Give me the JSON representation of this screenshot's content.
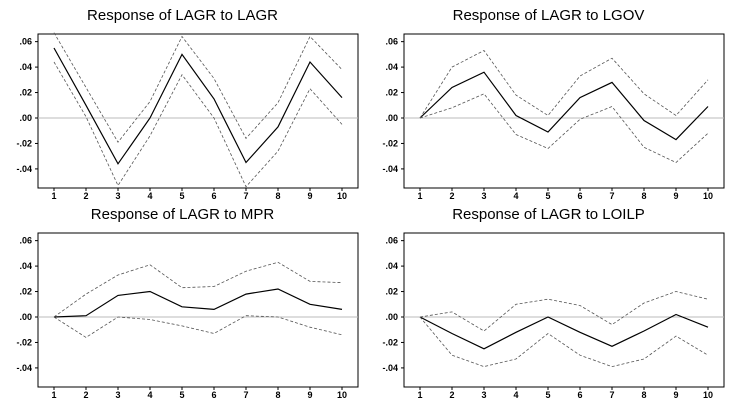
{
  "chart_data": [
    {
      "type": "line",
      "title": "Response of LAGR to LAGR",
      "x": [
        1,
        2,
        3,
        4,
        5,
        6,
        7,
        8,
        9,
        10
      ],
      "ylim": [
        -0.055,
        0.066
      ],
      "yticks": [
        0.06,
        0.04,
        0.02,
        0.0,
        -0.02,
        -0.04
      ],
      "ytick_labels": [
        ".06",
        ".04",
        ".02",
        ".00",
        "-.02",
        "-.04"
      ],
      "zero_line": true,
      "series": [
        {
          "style": "solid",
          "values": [
            0.055,
            0.01,
            -0.036,
            0.0,
            0.05,
            0.015,
            -0.035,
            -0.007,
            0.044,
            0.016
          ]
        },
        {
          "style": "dashed",
          "values": [
            0.067,
            0.024,
            -0.019,
            0.013,
            0.064,
            0.031,
            -0.016,
            0.012,
            0.064,
            0.038
          ]
        },
        {
          "style": "dashed",
          "values": [
            0.044,
            0.001,
            -0.053,
            -0.014,
            0.034,
            0.0,
            -0.054,
            -0.026,
            0.023,
            -0.005
          ]
        }
      ]
    },
    {
      "type": "line",
      "title": "Response of LAGR to LGOV",
      "x": [
        1,
        2,
        3,
        4,
        5,
        6,
        7,
        8,
        9,
        10
      ],
      "ylim": [
        -0.055,
        0.066
      ],
      "yticks": [
        0.06,
        0.04,
        0.02,
        0.0,
        -0.02,
        -0.04
      ],
      "ytick_labels": [
        ".06",
        ".04",
        ".02",
        ".00",
        "-.02",
        "-.04"
      ],
      "zero_line": true,
      "series": [
        {
          "style": "solid",
          "values": [
            0.0,
            0.024,
            0.036,
            0.002,
            -0.011,
            0.016,
            0.028,
            -0.002,
            -0.017,
            0.009
          ]
        },
        {
          "style": "dashed",
          "values": [
            0.0,
            0.04,
            0.053,
            0.018,
            0.002,
            0.033,
            0.047,
            0.019,
            0.002,
            0.03
          ]
        },
        {
          "style": "dashed",
          "values": [
            0.0,
            0.008,
            0.019,
            -0.013,
            -0.024,
            -0.001,
            0.009,
            -0.023,
            -0.035,
            -0.012
          ]
        }
      ]
    },
    {
      "type": "line",
      "title": "Response of LAGR to MPR",
      "x": [
        1,
        2,
        3,
        4,
        5,
        6,
        7,
        8,
        9,
        10
      ],
      "ylim": [
        -0.055,
        0.066
      ],
      "yticks": [
        0.06,
        0.04,
        0.02,
        0.0,
        -0.02,
        -0.04
      ],
      "ytick_labels": [
        ".06",
        ".04",
        ".02",
        ".00",
        "-.02",
        "-.04"
      ],
      "zero_line": true,
      "series": [
        {
          "style": "solid",
          "values": [
            0.0,
            0.001,
            0.017,
            0.02,
            0.008,
            0.006,
            0.018,
            0.022,
            0.01,
            0.006
          ]
        },
        {
          "style": "dashed",
          "values": [
            0.0,
            0.018,
            0.033,
            0.041,
            0.023,
            0.024,
            0.036,
            0.043,
            0.028,
            0.027
          ]
        },
        {
          "style": "dashed",
          "values": [
            0.0,
            -0.016,
            0.0,
            -0.002,
            -0.007,
            -0.013,
            0.001,
            0.0,
            -0.008,
            -0.014
          ]
        }
      ]
    },
    {
      "type": "line",
      "title": "Response of LAGR to LOILP",
      "x": [
        1,
        2,
        3,
        4,
        5,
        6,
        7,
        8,
        9,
        10
      ],
      "ylim": [
        -0.055,
        0.066
      ],
      "yticks": [
        0.06,
        0.04,
        0.02,
        0.0,
        -0.02,
        -0.04
      ],
      "ytick_labels": [
        ".06",
        ".04",
        ".02",
        ".00",
        "-.02",
        "-.04"
      ],
      "zero_line": true,
      "series": [
        {
          "style": "solid",
          "values": [
            0.0,
            -0.013,
            -0.025,
            -0.012,
            0.0,
            -0.012,
            -0.023,
            -0.011,
            0.002,
            -0.008
          ]
        },
        {
          "style": "dashed",
          "values": [
            0.0,
            0.004,
            -0.011,
            0.01,
            0.014,
            0.009,
            -0.006,
            0.011,
            0.02,
            0.014
          ]
        },
        {
          "style": "dashed",
          "values": [
            0.0,
            -0.03,
            -0.039,
            -0.033,
            -0.013,
            -0.03,
            -0.039,
            -0.033,
            -0.015,
            -0.03
          ]
        }
      ]
    }
  ]
}
